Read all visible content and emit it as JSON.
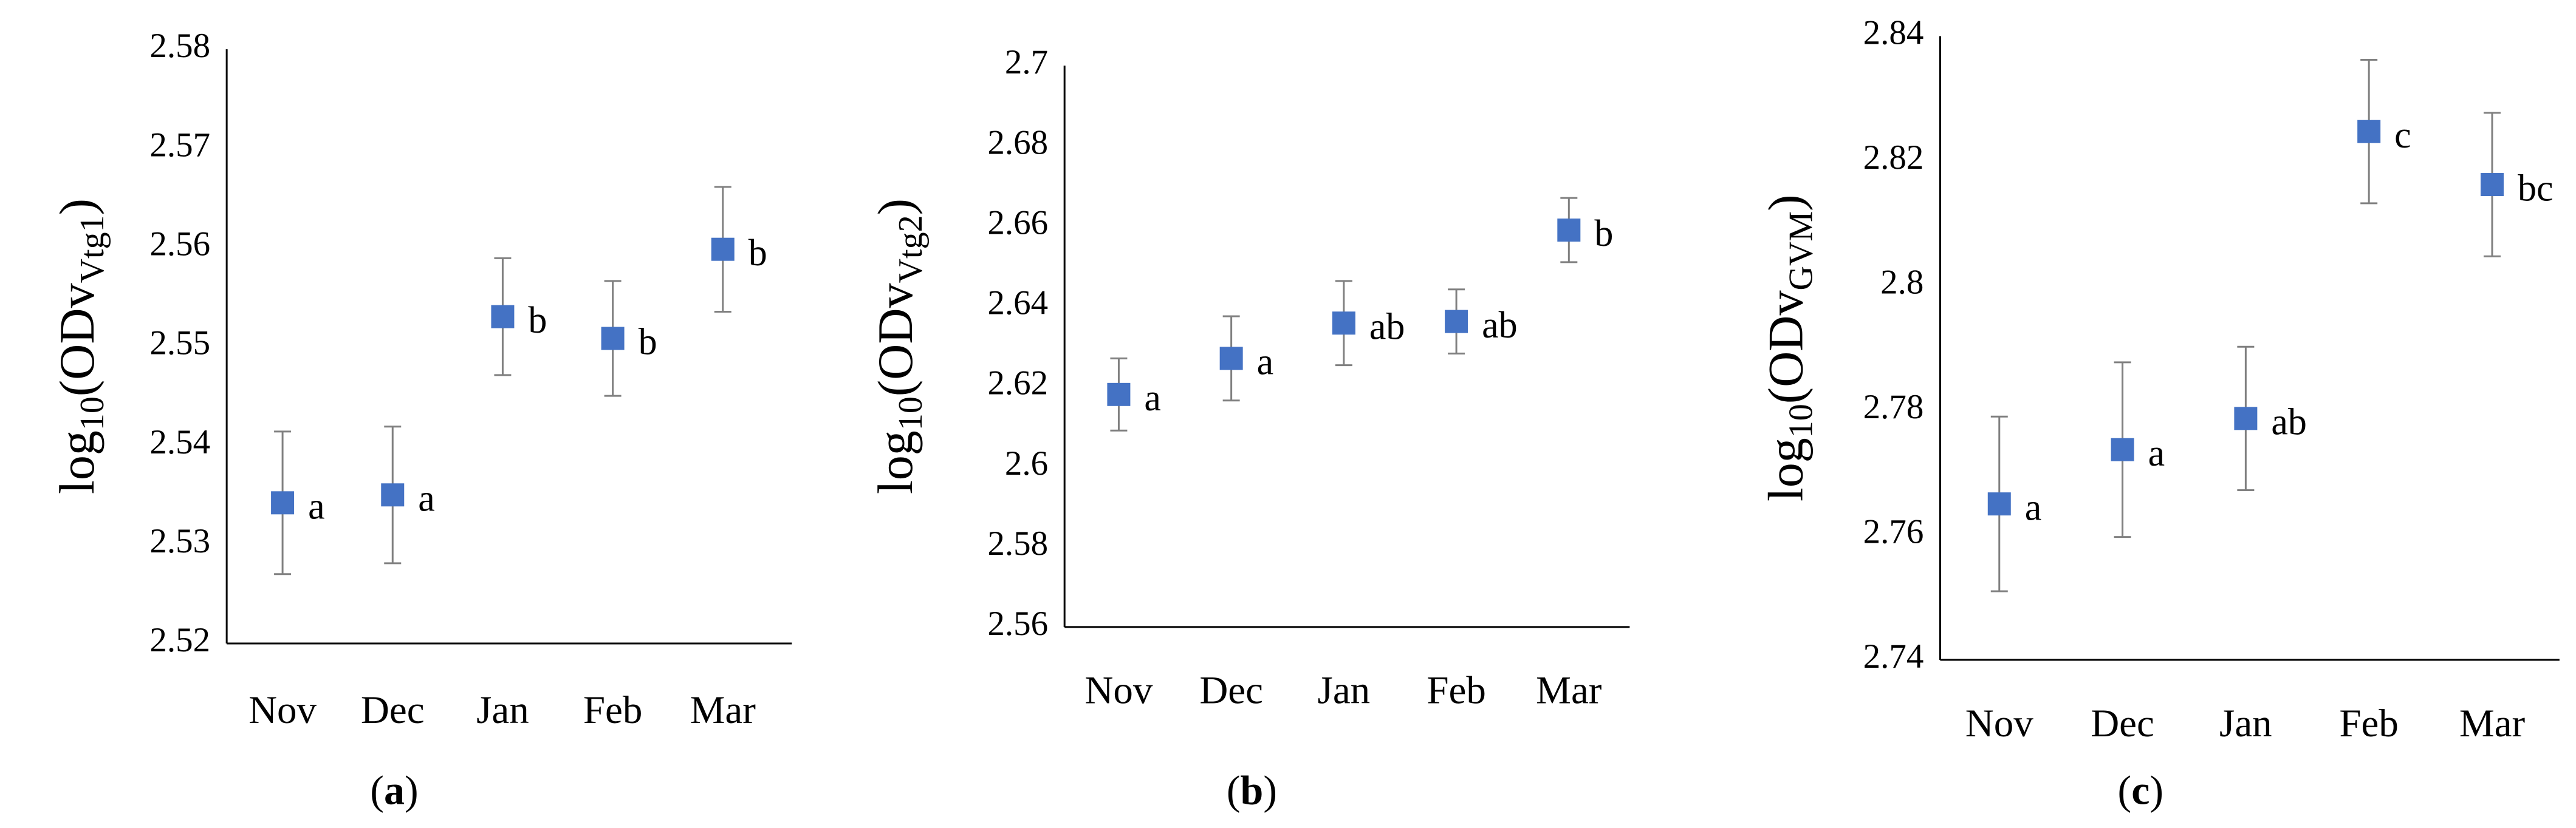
{
  "chart_data": [
    {
      "type": "scatter",
      "y_label": [
        "log",
        "10",
        "(ODv",
        "Vtg1",
        ")"
      ],
      "panel_label": [
        "(",
        "a",
        ")"
      ],
      "categories": [
        "Nov",
        "Dec",
        "Jan",
        "Feb",
        "Mar"
      ],
      "values": [
        2.5342,
        2.535,
        2.553,
        2.5508,
        2.5598
      ],
      "errors": [
        0.0072,
        0.0069,
        0.0059,
        0.0058,
        0.0063
      ],
      "annotations": [
        "a",
        "a",
        "b",
        "b",
        "b"
      ],
      "color": "#4472c4",
      "ylim": [
        2.52,
        2.58
      ],
      "yticks": [
        2.52,
        2.53,
        2.54,
        2.55,
        2.56,
        2.57,
        2.58
      ],
      "grid": false
    },
    {
      "type": "scatter",
      "y_label": [
        "log",
        "10",
        "(ODv",
        "Vtg2",
        ")"
      ],
      "panel_label": [
        "(",
        "b",
        ")"
      ],
      "categories": [
        "Nov",
        "Dec",
        "Jan",
        "Feb",
        "Mar"
      ],
      "values": [
        2.618,
        2.627,
        2.6358,
        2.6362,
        2.659
      ],
      "errors": [
        0.009,
        0.0105,
        0.0105,
        0.008,
        0.008
      ],
      "annotations": [
        "a",
        "a",
        "ab",
        "ab",
        "b"
      ],
      "color": "#4472c4",
      "ylim": [
        2.56,
        2.7
      ],
      "yticks": [
        2.56,
        2.58,
        2.6,
        2.62,
        2.64,
        2.66,
        2.68,
        2.7
      ],
      "grid": false
    },
    {
      "type": "scatter",
      "y_label": [
        "log",
        "10",
        "(ODv",
        "GVM",
        ")"
      ],
      "panel_label": [
        "(",
        "c",
        ")"
      ],
      "categories": [
        "Nov",
        "Dec",
        "Jan",
        "Feb",
        "Mar"
      ],
      "values": [
        2.765,
        2.7737,
        2.7787,
        2.8247,
        2.8162
      ],
      "errors": [
        0.014,
        0.014,
        0.0115,
        0.0115,
        0.0115
      ],
      "annotations": [
        "a",
        "a",
        "ab",
        "c",
        "bc"
      ],
      "color": "#4472c4",
      "ylim": [
        2.74,
        2.84
      ],
      "yticks": [
        2.74,
        2.76,
        2.78,
        2.8,
        2.82,
        2.84
      ],
      "grid": false
    }
  ]
}
